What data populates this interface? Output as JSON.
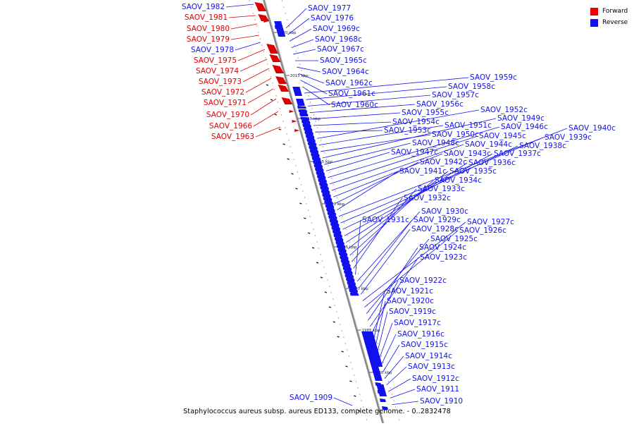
{
  "colors": {
    "forward": "#dd0000",
    "reverse": "#1111ee",
    "backbone": "#888888"
  },
  "legend": [
    {
      "label": "Forward",
      "color": "#ee0000"
    },
    {
      "label": "Reverse",
      "color": "#1111ee"
    }
  ],
  "caption": "Staphylococcus aureus subsp. aureus ED133, complete genome. - 0..2832478",
  "scale_labels": [
    "2020 kbp",
    "2015 kbp",
    "2010 kbp",
    "2005 kbp",
    "2000 kbp",
    "1995 kbp",
    "1990 kbp",
    "1985 kbp",
    "1980 kbp"
  ],
  "forward_labels": [
    "SAOV_1981",
    "SAOV_1980",
    "SAOV_1979",
    "SAOV_1975",
    "SAOV_1974",
    "SAOV_1973",
    "SAOV_1972",
    "SAOV_1971",
    "SAOV_1970",
    "SAOV_1966",
    "SAOV_1963"
  ],
  "reverse_left_labels": [
    "SAOV_1982",
    "SAOV_1978",
    "SAOV_1909"
  ],
  "reverse_right_labels": [
    "SAOV_1977",
    "SAOV_1976",
    "SAOV_1969c",
    "SAOV_1968c",
    "SAOV_1967c",
    "SAOV_1965c",
    "SAOV_1964c",
    "SAOV_1962c",
    "SAOV_1961c",
    "SAOV_1960c",
    "SAOV_1959c",
    "SAOV_1958c",
    "SAOV_1957c",
    "SAOV_1956c",
    "SAOV_1955c",
    "SAOV_1954c",
    "SAOV_1953c",
    "SAOV_1952c",
    "SAOV_1951c",
    "SAOV_1950c",
    "SAOV_1949c",
    "SAOV_1948c",
    "SAOV_1947c",
    "SAOV_1946c",
    "SAOV_1945c",
    "SAOV_1944c",
    "SAOV_1943c",
    "SAOV_1942c",
    "SAOV_1941c",
    "SAOV_1940c",
    "SAOV_1939c",
    "SAOV_1938c",
    "SAOV_1937c",
    "SAOV_1936c",
    "SAOV_1935c",
    "SAOV_1934c",
    "SAOV_1933c",
    "SAOV_1932c",
    "SAOV_1931c",
    "SAOV_1930c",
    "SAOV_1929c",
    "SAOV_1928c",
    "SAOV_1927c",
    "SAOV_1926c",
    "SAOV_1925c",
    "SAOV_1924c",
    "SAOV_1923c",
    "SAOV_1922c",
    "SAOV_1921c",
    "SAOV_1920c",
    "SAOV_1919c",
    "SAOV_1917c",
    "SAOV_1916c",
    "SAOV_1915c",
    "SAOV_1914c",
    "SAOV_1913c",
    "SAOV_1912c",
    "SAOV_1911",
    "SAOV_1910"
  ]
}
